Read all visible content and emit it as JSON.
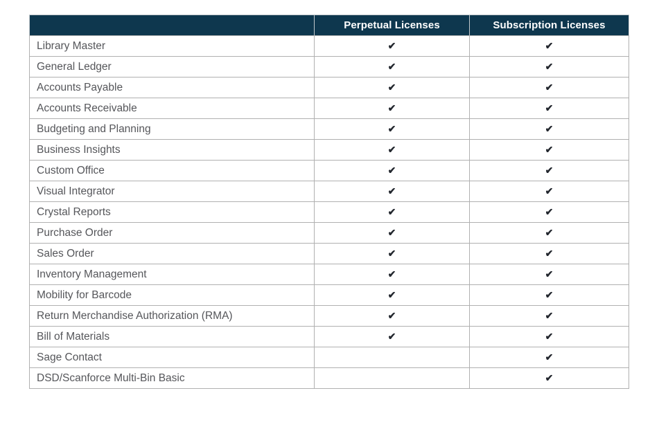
{
  "table": {
    "columns": [
      {
        "label": ""
      },
      {
        "label": "Perpetual Licenses"
      },
      {
        "label": "Subscription Licenses"
      }
    ],
    "check_glyph": "✔",
    "rows": [
      {
        "name": "Library Master",
        "perpetual": true,
        "subscription": true
      },
      {
        "name": "General Ledger",
        "perpetual": true,
        "subscription": true
      },
      {
        "name": "Accounts Payable",
        "perpetual": true,
        "subscription": true
      },
      {
        "name": "Accounts Receivable",
        "perpetual": true,
        "subscription": true
      },
      {
        "name": "Budgeting and Planning",
        "perpetual": true,
        "subscription": true
      },
      {
        "name": "Business Insights",
        "perpetual": true,
        "subscription": true
      },
      {
        "name": "Custom Office",
        "perpetual": true,
        "subscription": true
      },
      {
        "name": "Visual Integrator",
        "perpetual": true,
        "subscription": true
      },
      {
        "name": "Crystal Reports",
        "perpetual": true,
        "subscription": true
      },
      {
        "name": "Purchase Order",
        "perpetual": true,
        "subscription": true
      },
      {
        "name": "Sales Order",
        "perpetual": true,
        "subscription": true
      },
      {
        "name": "Inventory Management",
        "perpetual": true,
        "subscription": true
      },
      {
        "name": "Mobility for Barcode",
        "perpetual": true,
        "subscription": true
      },
      {
        "name": "Return Merchandise Authorization (RMA)",
        "perpetual": true,
        "subscription": true
      },
      {
        "name": "Bill of Materials",
        "perpetual": true,
        "subscription": true
      },
      {
        "name": "Sage Contact",
        "perpetual": false,
        "subscription": true
      },
      {
        "name": "DSD/Scanforce Multi-Bin Basic",
        "perpetual": false,
        "subscription": true
      }
    ]
  },
  "colors": {
    "header_bg": "#0e374e",
    "header_text": "#ffffff",
    "row_text": "#55565a",
    "check": "#23272e",
    "grid": "#b0b0b0",
    "page_bg": "#ffffff"
  }
}
